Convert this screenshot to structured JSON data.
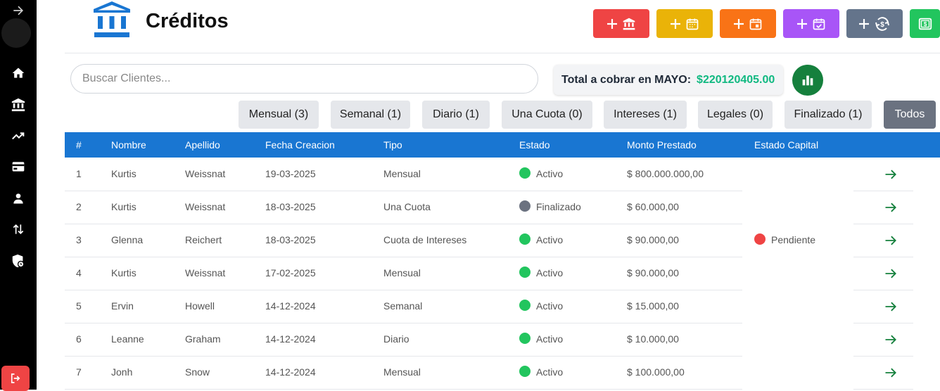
{
  "page": {
    "title": "Créditos"
  },
  "colors": {
    "primary": "#1976d2",
    "active": "#22c55e",
    "finalized": "#6b7280",
    "pending": "#ef4444",
    "total": "#10b981"
  },
  "sidebar": {
    "items": [
      {
        "icon": "arrow-right-icon"
      },
      {
        "icon": "home-icon"
      },
      {
        "icon": "bank-icon"
      },
      {
        "icon": "trending-up-icon"
      },
      {
        "icon": "credit-card-icon"
      },
      {
        "icon": "user-icon"
      },
      {
        "icon": "swap-vertical-icon"
      },
      {
        "icon": "security-icon"
      },
      {
        "icon": "logout-icon"
      }
    ]
  },
  "actions": [
    {
      "icon": "bank-icon",
      "color": "#ef4444"
    },
    {
      "icon": "calendar-icon",
      "color": "#eab308"
    },
    {
      "icon": "calendar-day-icon",
      "color": "#f97316"
    },
    {
      "icon": "calendar-check-icon",
      "color": "#a855f7"
    },
    {
      "icon": "money-exchange-icon",
      "color": "#64748b"
    },
    {
      "icon": "money-bill-icon",
      "color": "#22c55e"
    }
  ],
  "search": {
    "placeholder": "Buscar Clientes...",
    "value": ""
  },
  "total": {
    "label": "Total a cobrar en MAYO:",
    "amount": "$220120405.00"
  },
  "filters": [
    {
      "label": "Mensual (3)"
    },
    {
      "label": "Semanal (1)"
    },
    {
      "label": "Diario (1)"
    },
    {
      "label": "Una Cuota (0)"
    },
    {
      "label": "Intereses (1)"
    },
    {
      "label": "Legales (0)"
    },
    {
      "label": "Finalizado (1)"
    },
    {
      "label": "Todos",
      "active": true
    }
  ],
  "table": {
    "headers": [
      "#",
      "Nombre",
      "Apellido",
      "Fecha Creacion",
      "Tipo",
      "Estado",
      "Monto Prestado",
      "Estado Capital"
    ],
    "rows": [
      {
        "num": "1",
        "nombre": "Kurtis",
        "apellido": "Weissnat",
        "fecha": "19-03-2025",
        "tipo": "Mensual",
        "estado": "Activo",
        "monto": "$ 800.000.000,00"
      },
      {
        "num": "2",
        "nombre": "Kurtis",
        "apellido": "Weissnat",
        "fecha": "18-03-2025",
        "tipo": "Una Cuota",
        "estado": "Finalizado",
        "monto": "$ 60.000,00"
      },
      {
        "num": "3",
        "nombre": "Glenna",
        "apellido": "Reichert",
        "fecha": "18-03-2025",
        "tipo": "Cuota de Intereses",
        "estado": "Activo",
        "monto": "$ 90.000,00"
      },
      {
        "num": "4",
        "nombre": "Kurtis",
        "apellido": "Weissnat",
        "fecha": "17-02-2025",
        "tipo": "Mensual",
        "estado": "Activo",
        "monto": "$ 90.000,00"
      },
      {
        "num": "5",
        "nombre": "Ervin",
        "apellido": "Howell",
        "fecha": "14-12-2024",
        "tipo": "Semanal",
        "estado": "Activo",
        "monto": "$ 15.000,00"
      },
      {
        "num": "6",
        "nombre": "Leanne",
        "apellido": "Graham",
        "fecha": "14-12-2024",
        "tipo": "Diario",
        "estado": "Activo",
        "monto": "$ 10.000,00"
      },
      {
        "num": "7",
        "nombre": "Jonh",
        "apellido": "Snow",
        "fecha": "14-12-2024",
        "tipo": "Mensual",
        "estado": "Activo",
        "monto": "$ 100.000,00"
      }
    ],
    "capital": {
      "row": 3,
      "label": "Pendiente"
    }
  }
}
